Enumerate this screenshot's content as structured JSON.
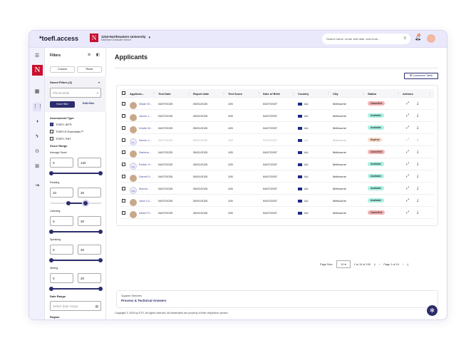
{
  "header": {
    "logo": "*toefl.access",
    "institution": "1234-Northeastern University",
    "institution_sub": "Markham Graduate School",
    "search_placeholder": "Search name, email, test date, and more...",
    "notification_count": "3"
  },
  "filters": {
    "title": "Filters",
    "custom": "Custom",
    "reset": "Reset",
    "saved_filters": "Saved Filters (3)",
    "placeholder": "Placeholder",
    "save_filter": "Save filter",
    "edit_filter": "Edit filter",
    "assessment_type": "Assessment Type",
    "types": [
      {
        "label": "TOEFL iBT®",
        "checked": true
      },
      {
        "label": "TOEFL® Essentials™",
        "checked": false
      },
      {
        "label": "TOEFL PBT",
        "checked": false
      }
    ],
    "score_range": "Score Range",
    "ranges": [
      {
        "label": "Average Score",
        "min": "0",
        "max": "120"
      },
      {
        "label": "Reading",
        "min": "10",
        "max": "25"
      },
      {
        "label": "Listening",
        "min": "0",
        "max": "30"
      },
      {
        "label": "Speaking",
        "min": "0",
        "max": "30"
      },
      {
        "label": "Writing",
        "min": "0",
        "max": "30"
      }
    ],
    "date_range": "Date Range",
    "date_placeholder": "Select date range",
    "region": "Region"
  },
  "main": {
    "title": "Applicants",
    "customize": "Customize Table",
    "columns": [
      "Applican...",
      "Test Date",
      "Report date",
      "Test Score",
      "Date of Birth",
      "Country",
      "City",
      "Status",
      "Actions"
    ],
    "rows": [
      {
        "name": "Wade W...",
        "test_date": "04/07/2025",
        "report_date": "05/01/2025",
        "score": "105",
        "dob": "04/07/2007",
        "country": "AU",
        "city": "Melbourne",
        "status": "Cancelled"
      },
      {
        "name": "Jacob J...",
        "test_date": "04/07/2025",
        "report_date": "05/01/2025",
        "score": "105",
        "dob": "04/07/2007",
        "country": "AU",
        "city": "Melbourne",
        "status": "Available"
      },
      {
        "name": "Kristin W...",
        "test_date": "04/07/2025",
        "report_date": "05/01/2025",
        "score": "105",
        "dob": "04/07/2007",
        "country": "AU",
        "city": "Melbourne",
        "status": "Available"
      },
      {
        "name": "Devon L...",
        "initials": "DL",
        "test_date": "04/07/2025",
        "report_date": "05/01/2025",
        "score": "105",
        "dob": "04/07/2007",
        "country": "AU",
        "city": "Melbourne",
        "status": "Expired",
        "dim": true
      },
      {
        "name": "Darlene...",
        "test_date": "04/07/2025",
        "report_date": "05/01/2025",
        "score": "105",
        "dob": "04/07/2007",
        "country": "AU",
        "city": "Melbourne",
        "status": "Cancelled"
      },
      {
        "name": "Esther H...",
        "initials": "EH",
        "test_date": "04/07/2025",
        "report_date": "05/01/2025",
        "score": "105",
        "dob": "04/07/2007",
        "country": "AU",
        "city": "Melbourne",
        "status": "Available"
      },
      {
        "name": "Darrell S...",
        "test_date": "04/07/2025",
        "report_date": "05/01/2025",
        "score": "105",
        "dob": "04/07/2007",
        "country": "AU",
        "city": "Melbourne",
        "status": "Available"
      },
      {
        "name": "Marvin...",
        "initials": "MM",
        "test_date": "04/07/2025",
        "report_date": "05/01/2025",
        "score": "105",
        "dob": "04/07/2007",
        "country": "AU",
        "city": "Melbourne",
        "status": "Available"
      },
      {
        "name": "Jane Co...",
        "test_date": "04/07/2025",
        "report_date": "05/01/2025",
        "score": "105",
        "dob": "04/07/2007",
        "country": "AU",
        "city": "Melbourne",
        "status": "Available"
      },
      {
        "name": "Albert Fl...",
        "test_date": "04/07/2025",
        "report_date": "05/01/2025",
        "score": "105",
        "dob": "04/07/2007",
        "country": "AU",
        "city": "Melbourne",
        "status": "Cancelled"
      }
    ],
    "pagination": {
      "page_size_label": "Page Size:",
      "page_size": "10",
      "range": "1 to 10 of 190",
      "page": "Page 1 of 19"
    },
    "support": {
      "label": "Support Services",
      "link": "Process & Technical Answers"
    },
    "copyright": "Copyright © 2025 by ETS. All rights reserved. All trademarks are property of their respective owners."
  },
  "status_colors": {
    "Cancelled": "#f2b1b1",
    "Available": "#a8f0e2",
    "Expired": "#fbd9c8"
  }
}
